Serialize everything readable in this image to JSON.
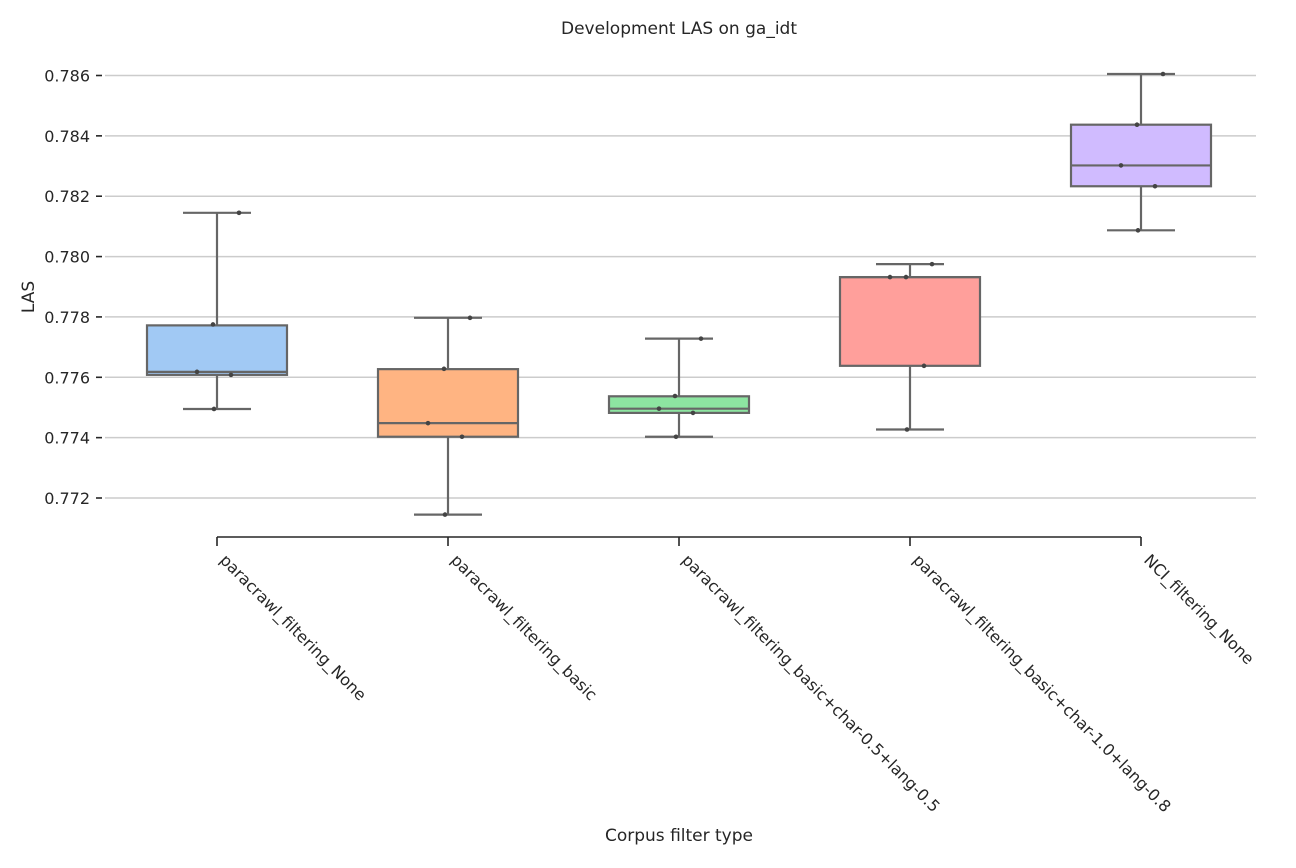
{
  "chart_data": {
    "type": "box",
    "title": "Development LAS on ga_idt",
    "xlabel": "Corpus filter type",
    "ylabel": "LAS",
    "ylim": [
      0.7708,
      0.7865
    ],
    "yticks": [
      0.772,
      0.774,
      0.776,
      0.778,
      0.78,
      0.782,
      0.784,
      0.786
    ],
    "ytick_labels": [
      "0.772",
      "0.774",
      "0.776",
      "0.778",
      "0.780",
      "0.782",
      "0.784",
      "0.786"
    ],
    "grid": "horizontal",
    "categories": [
      "paracrawl_filtering_None",
      "paracrawl_filtering_basic",
      "paracrawl_filtering_basic+char-0.5+lang-0.5",
      "paracrawl_filtering_basic+char-1.0+lang-0.8",
      "NCI_filtering_None"
    ],
    "series": [
      {
        "category": "paracrawl_filtering_None",
        "color": "#a1c9f4",
        "whisker_low": 0.77495,
        "q1": 0.77608,
        "median": 0.77618,
        "q3": 0.77772,
        "whisker_high": 0.78145,
        "points": [
          0.77495,
          0.77608,
          0.77618,
          0.77775,
          0.78145
        ]
      },
      {
        "category": "paracrawl_filtering_basic",
        "color": "#ffb482",
        "whisker_low": 0.77145,
        "q1": 0.77403,
        "median": 0.77448,
        "q3": 0.77627,
        "whisker_high": 0.77797,
        "points": [
          0.77145,
          0.77403,
          0.77448,
          0.77628,
          0.77797
        ]
      },
      {
        "category": "paracrawl_filtering_basic+char-0.5+lang-0.5",
        "color": "#8de5a1",
        "whisker_low": 0.77403,
        "q1": 0.77482,
        "median": 0.77496,
        "q3": 0.77537,
        "whisker_high": 0.77728,
        "points": [
          0.77403,
          0.77482,
          0.77496,
          0.77538,
          0.77728
        ]
      },
      {
        "category": "paracrawl_filtering_basic+char-1.0+lang-0.8",
        "color": "#ff9f9b",
        "whisker_low": 0.77427,
        "q1": 0.77638,
        "median": 0.77932,
        "q3": 0.77932,
        "whisker_high": 0.77975,
        "points": [
          0.77427,
          0.77638,
          0.77932,
          0.77932,
          0.77975
        ]
      },
      {
        "category": "NCI_filtering_None",
        "color": "#d0bbff",
        "whisker_low": 0.78087,
        "q1": 0.78233,
        "median": 0.78302,
        "q3": 0.78437,
        "whisker_high": 0.78605,
        "points": [
          0.78087,
          0.78233,
          0.78302,
          0.78437,
          0.78605
        ]
      }
    ]
  }
}
